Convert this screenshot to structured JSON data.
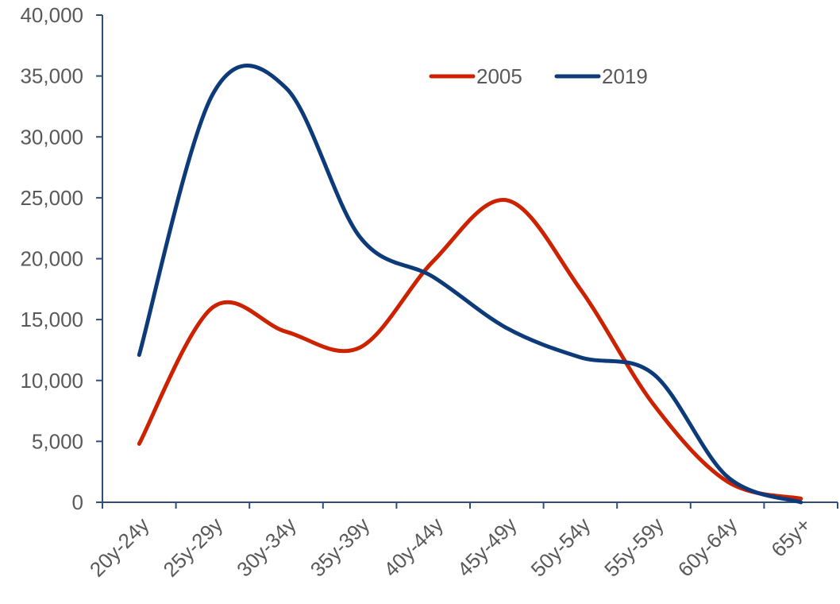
{
  "chart_data": {
    "type": "line",
    "title": "",
    "xlabel": "",
    "ylabel": "",
    "categories": [
      "20y-24y",
      "25y-29y",
      "30y-34y",
      "35y-39y",
      "40y-44y",
      "45y-49y",
      "50y-54y",
      "55y-59y",
      "60y-64y",
      "65y+"
    ],
    "ylim": [
      0,
      40000
    ],
    "yticks": [
      0,
      5000,
      10000,
      15000,
      20000,
      25000,
      30000,
      35000,
      40000
    ],
    "ytick_labels": [
      "0",
      "5,000",
      "10,000",
      "15,000",
      "20,000",
      "25,000",
      "30,000",
      "35,000",
      "40,000"
    ],
    "grid": false,
    "legend_position": "top-right",
    "smooth": true,
    "series": [
      {
        "name": "2005",
        "color": "#cc2200",
        "values": [
          4800,
          16000,
          14000,
          12700,
          19800,
          24800,
          17500,
          8000,
          1700,
          300
        ]
      },
      {
        "name": "2019",
        "color": "#0d3b7a",
        "values": [
          12100,
          33500,
          34000,
          21800,
          18500,
          14300,
          11900,
          10500,
          2100,
          0
        ]
      }
    ]
  }
}
